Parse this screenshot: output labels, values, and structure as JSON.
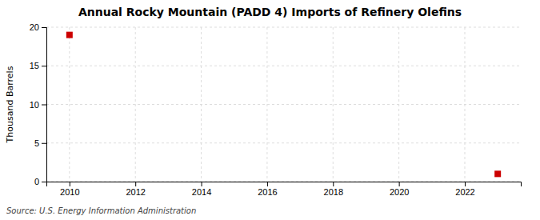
{
  "chart_data": {
    "type": "scatter",
    "title": "Annual Rocky Mountain (PADD 4) Imports of Refinery Olefins",
    "y_label": "Thousand Barrels",
    "source": "Source: U.S. Energy Information Administration",
    "x": [
      2010,
      2023
    ],
    "values": [
      19,
      1
    ],
    "color": "#cc0000",
    "marker": "square",
    "xlim": [
      2009.3,
      2023.7
    ],
    "ylim": [
      0,
      20
    ],
    "xticks": [
      2010,
      2012,
      2014,
      2016,
      2018,
      2020,
      2022
    ],
    "yticks": [
      0,
      5,
      10,
      15,
      20
    ],
    "grid": true
  }
}
